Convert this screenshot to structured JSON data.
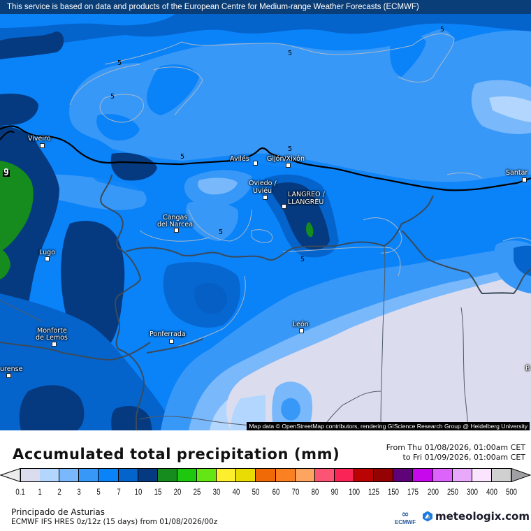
{
  "banner": {
    "text": "This service is based on data and products of the European Centre for Medium-range Weather Forecasts (ECMWF)"
  },
  "map": {
    "attribution": "Map data © OpenStreetMap contributors, rendering GIScience Research Group @ Heidelberg University",
    "contour_label": "5",
    "edge_label": "9",
    "cities": [
      {
        "name": "Viveiro",
        "lines": [
          "Viveiro"
        ]
      },
      {
        "name": "Avilés",
        "lines": [
          "Avilés"
        ]
      },
      {
        "name": "Gijón/Xixón",
        "lines": [
          "Gijón/Xixón"
        ]
      },
      {
        "name": "Oviedo / Uviéu",
        "lines": [
          "Oviedo /",
          "Uviéu"
        ]
      },
      {
        "name": "LANGREO / LLANGRÉU",
        "lines": [
          "LANGREO /",
          "LLANGRÉU"
        ]
      },
      {
        "name": "Cangas del Narcea",
        "lines": [
          "Cangas",
          "del Narcea"
        ]
      },
      {
        "name": "Lugo",
        "lines": [
          "Lugo"
        ]
      },
      {
        "name": "Monforte de Lemos",
        "lines": [
          "Monforte",
          "de Lemos"
        ]
      },
      {
        "name": "Ponferrada",
        "lines": [
          "Ponferrada"
        ]
      },
      {
        "name": "León",
        "lines": [
          "León"
        ]
      },
      {
        "name": "Ourense (partial)",
        "lines": [
          "urense"
        ]
      },
      {
        "name": "Santander (partial)",
        "lines": [
          "Santar"
        ]
      },
      {
        "name": "B (partial)",
        "lines": [
          "B"
        ]
      }
    ]
  },
  "legend": {
    "title": "Accumulated total precipitation (mm)",
    "period_from": "From Thu 01/08/2026, 01:00am CET",
    "period_to": "to Fri 01/09/2026, 01:00am CET",
    "ticks": [
      "0.1",
      "1",
      "2",
      "3",
      "5",
      "7",
      "10",
      "15",
      "20",
      "25",
      "30",
      "40",
      "50",
      "60",
      "70",
      "80",
      "90",
      "100",
      "125",
      "150",
      "175",
      "200",
      "250",
      "300",
      "400",
      "500"
    ],
    "colors": [
      "#dcdcef",
      "#b3d6fe",
      "#78b8fb",
      "#3898f8",
      "#0a82f8",
      "#0564cc",
      "#053a80",
      "#168b1e",
      "#1ec80e",
      "#64e614",
      "#fdee2e",
      "#e8dc04",
      "#f06a08",
      "#fa8022",
      "#fca460",
      "#fc5474",
      "#fa2456",
      "#ba0404",
      "#940204",
      "#5e0478",
      "#c808ec",
      "#dc64fa",
      "#e8a8fc",
      "#fae4fe",
      "#d0d0d0"
    ],
    "under_color": "#ececec",
    "over_color": "#a0a0a4"
  },
  "footer": {
    "region": "Principado de Asturias",
    "model": "ECMWF IFS HRES 0z/12z (15 days) from  01/08/2026/00z",
    "ecmwf_logo_text": "ECMWF",
    "brand": "meteologix.com"
  }
}
